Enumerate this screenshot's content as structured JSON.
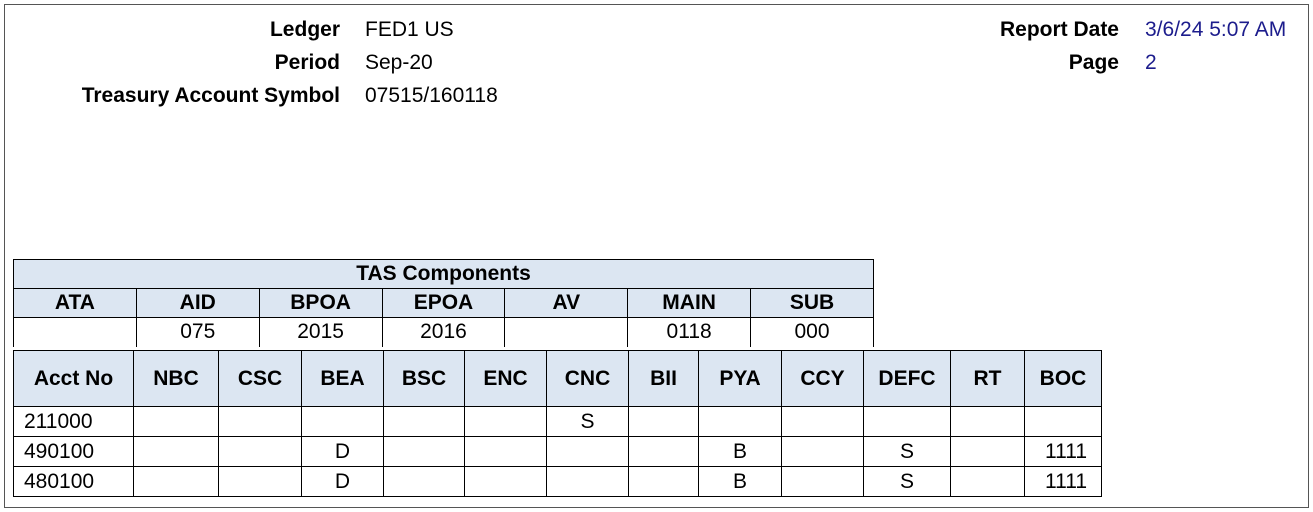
{
  "header": {
    "ledger_label": "Ledger",
    "ledger": "FED1 US",
    "period_label": "Period",
    "period": "Sep-20",
    "tas_label": "Treasury Account Symbol",
    "tas": "07515/160118",
    "report_date_label": "Report Date",
    "report_date": "3/6/24 5:07 AM",
    "page_label": "Page",
    "page": "2",
    "value_color": "#1c1c8c"
  },
  "tas_components": {
    "title": "TAS Components",
    "columns": [
      "ATA",
      "AID",
      "BPOA",
      "EPOA",
      "AV",
      "MAIN",
      "SUB"
    ],
    "values": [
      "",
      "075",
      "2015",
      "2016",
      "",
      "0118",
      "000"
    ]
  },
  "accounts": {
    "columns": [
      "Acct No",
      "NBC",
      "CSC",
      "BEA",
      "BSC",
      "ENC",
      "CNC",
      "BII",
      "PYA",
      "CCY",
      "DEFC",
      "RT",
      "BOC"
    ],
    "rows": [
      [
        "211000",
        "",
        "",
        "",
        "",
        "",
        "S",
        "",
        "",
        "",
        "",
        "",
        ""
      ],
      [
        "490100",
        "",
        "",
        "D",
        "",
        "",
        "",
        "",
        "B",
        "",
        "S",
        "",
        "1111"
      ],
      [
        "480100",
        "",
        "",
        "D",
        "",
        "",
        "",
        "",
        "B",
        "",
        "S",
        "",
        "1111"
      ]
    ]
  },
  "header_fill": "#dce6f2"
}
